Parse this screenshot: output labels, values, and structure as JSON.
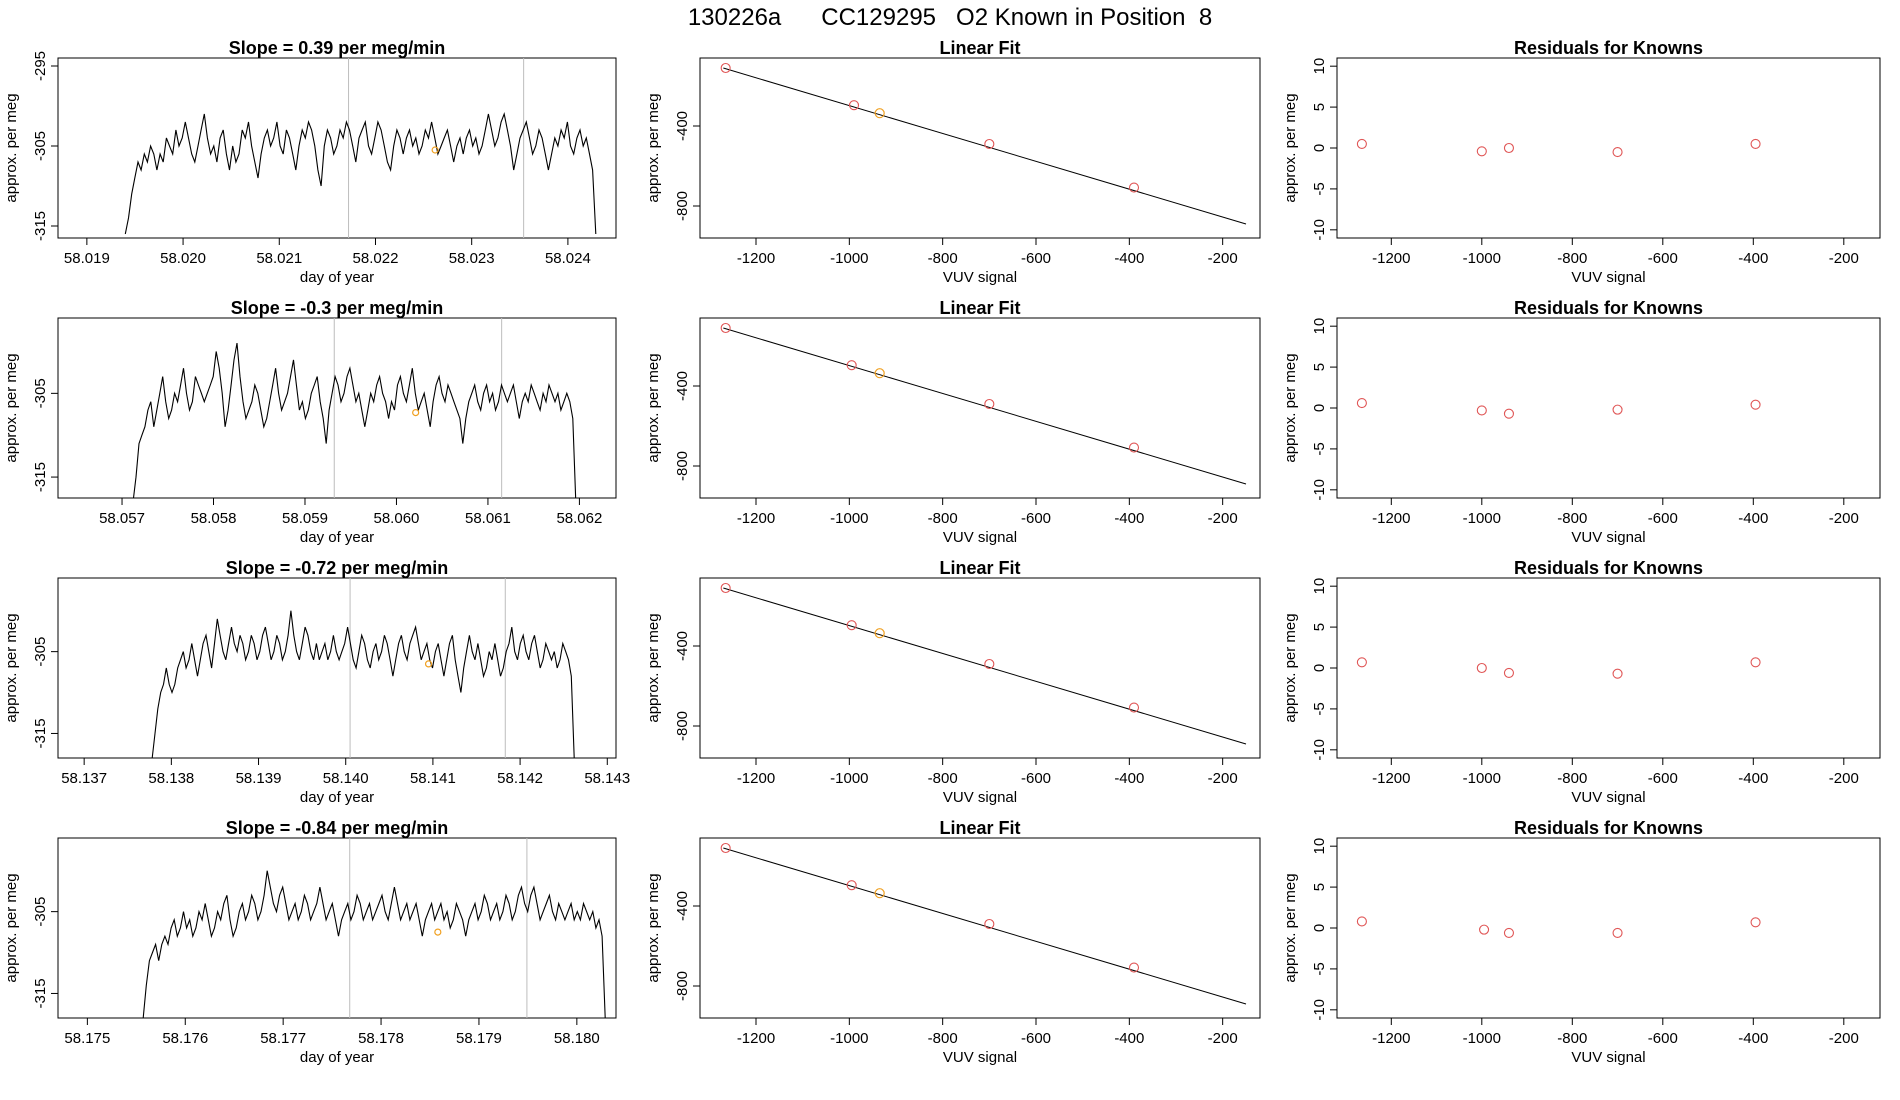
{
  "figure_title": "130226a      CC129295   O2 Known in Position  8",
  "colors": {
    "trace": "#000000",
    "gridline": "#bdbdbd",
    "fit_line": "#000000",
    "known_point": "#e05555",
    "current_point": "#f0a020",
    "frame": "#000000"
  },
  "chart_data": [
    {
      "type": "line",
      "row": 1,
      "title": "Slope =  0.39  per meg/min",
      "xlabel": "day of year",
      "ylabel": "approx. per meg",
      "xlim": [
        58.0187,
        58.0245
      ],
      "ylim": [
        -316.5,
        -294
      ],
      "xticks": [
        "58.019",
        "58.020",
        "58.021",
        "58.022",
        "58.023",
        "58.024"
      ],
      "yticks": [
        -295,
        -305,
        -315
      ],
      "vlines": [
        58.02172,
        58.02354
      ],
      "x_start": 58.0194,
      "x_end": 58.02429,
      "y": [
        -316,
        -314,
        -311,
        -309,
        -307,
        -308,
        -306,
        -307,
        -305,
        -306,
        -308,
        -306,
        -307,
        -304,
        -305,
        -306,
        -303,
        -305,
        -304,
        -302,
        -304,
        -306,
        -307,
        -305,
        -303,
        -301,
        -304,
        -306,
        -305,
        -307,
        -304,
        -303,
        -306,
        -308,
        -305,
        -307,
        -306,
        -303,
        -304,
        -302,
        -305,
        -307,
        -309,
        -306,
        -304,
        -303,
        -305,
        -304,
        -302,
        -305,
        -306,
        -303,
        -304,
        -306,
        -308,
        -305,
        -303,
        -304,
        -302,
        -303,
        -305,
        -308,
        -310,
        -305,
        -303,
        -304,
        -306,
        -305,
        -303,
        -304,
        -302,
        -303,
        -305,
        -307,
        -304,
        -303,
        -302,
        -305,
        -306,
        -304,
        -302,
        -303,
        -305,
        -307,
        -308,
        -305,
        -303,
        -304,
        -306,
        -304,
        -303,
        -305,
        -304,
        -306,
        -305,
        -303,
        -304,
        -302,
        -304,
        -306,
        -305,
        -304,
        -303,
        -305,
        -307,
        -305,
        -304,
        -306,
        -304,
        -303,
        -305,
        -304,
        -306,
        -305,
        -303,
        -301,
        -303,
        -305,
        -304,
        -302,
        -301,
        -303,
        -305,
        -308,
        -306,
        -304,
        -303,
        -302,
        -304,
        -306,
        -305,
        -303,
        -304,
        -306,
        -308,
        -306,
        -304,
        -305,
        -303,
        -304,
        -302,
        -305,
        -306,
        -304,
        -303,
        -305,
        -304,
        -306,
        -308,
        -316
      ],
      "marker": {
        "x": 58.02262,
        "y": -305.5
      }
    },
    {
      "type": "line",
      "row": 1,
      "title": "Linear Fit",
      "xlabel": "VUV signal",
      "ylabel": "approx. per meg",
      "xlim": [
        -1320,
        -120
      ],
      "ylim": [
        -960,
        -60
      ],
      "xticks": [
        -1200,
        -1000,
        -800,
        -600,
        -400,
        -200
      ],
      "yticks": [
        -400,
        -800
      ],
      "fit": [
        [
          -1270,
          -110
        ],
        [
          -150,
          -890
        ]
      ],
      "known": [
        [
          -1265,
          -110
        ],
        [
          -990,
          -296
        ],
        [
          -700,
          -490
        ],
        [
          -390,
          -708
        ]
      ],
      "current": [
        [
          -935,
          -336
        ]
      ]
    },
    {
      "type": "scatter",
      "row": 1,
      "title": "Residuals for Knowns",
      "xlabel": "VUV signal",
      "ylabel": "approx. per meg",
      "xlim": [
        -1320,
        -120
      ],
      "ylim": [
        -11,
        11
      ],
      "xticks": [
        -1200,
        -1000,
        -800,
        -600,
        -400,
        -200
      ],
      "yticks": [
        10,
        5,
        0,
        -5,
        -10
      ],
      "known": [
        [
          -1265,
          0.5
        ],
        [
          -1000,
          -0.4
        ],
        [
          -940,
          0
        ],
        [
          -700,
          -0.5
        ],
        [
          -395,
          0.5
        ]
      ]
    },
    {
      "type": "line",
      "row": 2,
      "title": "Slope =  -0.3  per meg/min",
      "xlabel": "day of year",
      "ylabel": "approx. per meg",
      "xlim": [
        58.0563,
        58.0624
      ],
      "ylim": [
        -317.5,
        -296
      ],
      "xticks": [
        "58.057",
        "58.058",
        "58.059",
        "58.060",
        "58.061",
        "58.062"
      ],
      "yticks": [
        -305,
        -315
      ],
      "vlines": [
        58.05932,
        58.06115
      ],
      "x_start": 58.05712,
      "x_end": 58.06196,
      "y": [
        -318,
        -315,
        -311,
        -310,
        -309,
        -307,
        -306,
        -309,
        -307,
        -305,
        -303,
        -306,
        -308,
        -307,
        -305,
        -306,
        -304,
        -302,
        -305,
        -307,
        -306,
        -303,
        -304,
        -305,
        -306,
        -305,
        -304,
        -303,
        -300,
        -302,
        -305,
        -309,
        -307,
        -304,
        -301,
        -299,
        -303,
        -306,
        -308,
        -307,
        -306,
        -304,
        -305,
        -307,
        -309,
        -308,
        -306,
        -304,
        -302,
        -305,
        -307,
        -306,
        -305,
        -303,
        -301,
        -304,
        -307,
        -306,
        -308,
        -307,
        -305,
        -304,
        -303,
        -306,
        -308,
        -311,
        -307,
        -305,
        -303,
        -304,
        -306,
        -305,
        -303,
        -302,
        -304,
        -306,
        -305,
        -307,
        -309,
        -307,
        -305,
        -306,
        -304,
        -303,
        -305,
        -306,
        -308,
        -306,
        -307,
        -304,
        -303,
        -305,
        -306,
        -304,
        -302,
        -305,
        -307,
        -306,
        -305,
        -307,
        -309,
        -306,
        -304,
        -303,
        -305,
        -306,
        -304,
        -305,
        -306,
        -307,
        -308,
        -311,
        -308,
        -306,
        -305,
        -304,
        -306,
        -307,
        -305,
        -304,
        -306,
        -305,
        -307,
        -306,
        -304,
        -305,
        -306,
        -305,
        -304,
        -306,
        -308,
        -306,
        -305,
        -306,
        -304,
        -305,
        -306,
        -307,
        -305,
        -306,
        -304,
        -305,
        -306,
        -305,
        -307,
        -306,
        -305,
        -306,
        -308,
        -318
      ],
      "marker": {
        "x": 58.06021,
        "y": -307.3
      }
    },
    {
      "type": "line",
      "row": 2,
      "title": "Linear Fit",
      "xlabel": "VUV signal",
      "ylabel": "approx. per meg",
      "xlim": [
        -1320,
        -120
      ],
      "ylim": [
        -960,
        -60
      ],
      "xticks": [
        -1200,
        -1000,
        -800,
        -600,
        -400,
        -200
      ],
      "yticks": [
        -400,
        -800
      ],
      "fit": [
        [
          -1270,
          -110
        ],
        [
          -150,
          -890
        ]
      ],
      "known": [
        [
          -1265,
          -110
        ],
        [
          -995,
          -296
        ],
        [
          -700,
          -490
        ],
        [
          -390,
          -708
        ]
      ],
      "current": [
        [
          -935,
          -336
        ]
      ]
    },
    {
      "type": "scatter",
      "row": 2,
      "title": "Residuals for Knowns",
      "xlabel": "VUV signal",
      "ylabel": "approx. per meg",
      "xlim": [
        -1320,
        -120
      ],
      "ylim": [
        -11,
        11
      ],
      "xticks": [
        -1200,
        -1000,
        -800,
        -600,
        -400,
        -200
      ],
      "yticks": [
        10,
        5,
        0,
        -5,
        -10
      ],
      "known": [
        [
          -1265,
          0.6
        ],
        [
          -1000,
          -0.3
        ],
        [
          -940,
          -0.7
        ],
        [
          -700,
          -0.2
        ],
        [
          -395,
          0.4
        ]
      ]
    },
    {
      "type": "line",
      "row": 3,
      "title": "Slope =  -0.72  per meg/min",
      "xlabel": "day of year",
      "ylabel": "approx. per meg",
      "xlim": [
        58.1367,
        58.1431
      ],
      "ylim": [
        -318,
        -296
      ],
      "xticks": [
        "58.137",
        "58.138",
        "58.139",
        "58.140",
        "58.141",
        "58.142",
        "58.143"
      ],
      "yticks": [
        -305,
        -315
      ],
      "vlines": [
        58.14005,
        58.14183
      ],
      "x_start": 58.13778,
      "x_end": 58.14262,
      "y": [
        -318,
        -315,
        -312,
        -310,
        -309,
        -307,
        -309,
        -310,
        -309,
        -307,
        -306,
        -305,
        -307,
        -306,
        -304,
        -306,
        -308,
        -306,
        -304,
        -303,
        -305,
        -307,
        -304,
        -301,
        -303,
        -305,
        -306,
        -304,
        -302,
        -304,
        -305,
        -303,
        -304,
        -306,
        -305,
        -303,
        -304,
        -306,
        -305,
        -303,
        -302,
        -304,
        -306,
        -305,
        -303,
        -304,
        -306,
        -305,
        -303,
        -300,
        -303,
        -305,
        -306,
        -304,
        -302,
        -303,
        -305,
        -306,
        -304,
        -306,
        -305,
        -304,
        -306,
        -305,
        -303,
        -305,
        -306,
        -305,
        -304,
        -302,
        -304,
        -306,
        -307,
        -305,
        -303,
        -304,
        -306,
        -307,
        -305,
        -304,
        -306,
        -305,
        -303,
        -304,
        -306,
        -308,
        -306,
        -304,
        -303,
        -305,
        -306,
        -304,
        -303,
        -302,
        -304,
        -306,
        -305,
        -304,
        -306,
        -307,
        -305,
        -304,
        -306,
        -308,
        -306,
        -304,
        -303,
        -306,
        -308,
        -310,
        -307,
        -305,
        -303,
        -305,
        -306,
        -304,
        -306,
        -308,
        -307,
        -305,
        -306,
        -304,
        -306,
        -308,
        -307,
        -305,
        -304,
        -302,
        -305,
        -306,
        -304,
        -303,
        -305,
        -306,
        -304,
        -303,
        -305,
        -307,
        -306,
        -304,
        -305,
        -306,
        -305,
        -307,
        -306,
        -304,
        -305,
        -306,
        -308,
        -318
      ],
      "marker": {
        "x": 58.14095,
        "y": -306.5
      }
    },
    {
      "type": "line",
      "row": 3,
      "title": "Linear Fit",
      "xlabel": "VUV signal",
      "ylabel": "approx. per meg",
      "xlim": [
        -1320,
        -120
      ],
      "ylim": [
        -960,
        -60
      ],
      "xticks": [
        -1200,
        -1000,
        -800,
        -600,
        -400,
        -200
      ],
      "yticks": [
        -400,
        -800
      ],
      "fit": [
        [
          -1270,
          -110
        ],
        [
          -150,
          -890
        ]
      ],
      "known": [
        [
          -1265,
          -110
        ],
        [
          -995,
          -296
        ],
        [
          -700,
          -490
        ],
        [
          -390,
          -708
        ]
      ],
      "current": [
        [
          -935,
          -336
        ]
      ]
    },
    {
      "type": "scatter",
      "row": 3,
      "title": "Residuals for Knowns",
      "xlabel": "VUV signal",
      "ylabel": "approx. per meg",
      "xlim": [
        -1320,
        -120
      ],
      "ylim": [
        -11,
        11
      ],
      "xticks": [
        -1200,
        -1000,
        -800,
        -600,
        -400,
        -200
      ],
      "yticks": [
        10,
        5,
        0,
        -5,
        -10
      ],
      "known": [
        [
          -1265,
          0.7
        ],
        [
          -1000,
          0
        ],
        [
          -940,
          -0.6
        ],
        [
          -700,
          -0.7
        ],
        [
          -395,
          0.7
        ]
      ]
    },
    {
      "type": "line",
      "row": 4,
      "title": "Slope =  -0.84  per meg/min",
      "xlabel": "day of year",
      "ylabel": "approx. per meg",
      "xlim": [
        58.1747,
        58.1804
      ],
      "ylim": [
        -318,
        -296
      ],
      "xticks": [
        "58.175",
        "58.176",
        "58.177",
        "58.178",
        "58.179",
        "58.180"
      ],
      "yticks": [
        -305,
        -315
      ],
      "vlines": [
        58.17768,
        58.17949
      ],
      "x_start": 58.17557,
      "x_end": 58.18029,
      "y": [
        -318,
        -314,
        -311,
        -310,
        -309,
        -311,
        -309,
        -308,
        -309,
        -307,
        -306,
        -308,
        -307,
        -305,
        -307,
        -306,
        -308,
        -307,
        -305,
        -306,
        -304,
        -306,
        -308,
        -307,
        -305,
        -306,
        -304,
        -303,
        -306,
        -308,
        -307,
        -305,
        -304,
        -306,
        -305,
        -303,
        -304,
        -306,
        -305,
        -303,
        -300,
        -302,
        -304,
        -305,
        -303,
        -302,
        -304,
        -306,
        -305,
        -304,
        -306,
        -305,
        -303,
        -304,
        -306,
        -305,
        -304,
        -302,
        -304,
        -306,
        -305,
        -304,
        -306,
        -308,
        -306,
        -305,
        -304,
        -306,
        -305,
        -303,
        -304,
        -306,
        -305,
        -304,
        -306,
        -305,
        -304,
        -303,
        -305,
        -306,
        -304,
        -302,
        -304,
        -306,
        -305,
        -304,
        -306,
        -305,
        -304,
        -306,
        -308,
        -306,
        -305,
        -304,
        -306,
        -305,
        -304,
        -306,
        -305,
        -307,
        -306,
        -304,
        -305,
        -306,
        -308,
        -306,
        -305,
        -304,
        -306,
        -305,
        -303,
        -304,
        -306,
        -305,
        -304,
        -306,
        -305,
        -303,
        -304,
        -306,
        -305,
        -303,
        -302,
        -304,
        -305,
        -303,
        -302,
        -304,
        -306,
        -305,
        -304,
        -303,
        -305,
        -306,
        -304,
        -305,
        -306,
        -305,
        -304,
        -306,
        -305,
        -306,
        -304,
        -305,
        -306,
        -305,
        -307,
        -306,
        -308,
        -318
      ],
      "marker": {
        "x": 58.17858,
        "y": -307.5
      }
    },
    {
      "type": "line",
      "row": 4,
      "title": "Linear Fit",
      "xlabel": "VUV signal",
      "ylabel": "approx. per meg",
      "xlim": [
        -1320,
        -120
      ],
      "ylim": [
        -960,
        -60
      ],
      "xticks": [
        -1200,
        -1000,
        -800,
        -600,
        -400,
        -200
      ],
      "yticks": [
        -400,
        -800
      ],
      "fit": [
        [
          -1270,
          -110
        ],
        [
          -150,
          -890
        ]
      ],
      "known": [
        [
          -1265,
          -110
        ],
        [
          -995,
          -296
        ],
        [
          -700,
          -490
        ],
        [
          -390,
          -708
        ]
      ],
      "current": [
        [
          -935,
          -336
        ]
      ]
    },
    {
      "type": "scatter",
      "row": 4,
      "title": "Residuals for Knowns",
      "xlabel": "VUV signal",
      "ylabel": "approx. per meg",
      "xlim": [
        -1320,
        -120
      ],
      "ylim": [
        -11,
        11
      ],
      "xticks": [
        -1200,
        -1000,
        -800,
        -600,
        -400,
        -200
      ],
      "yticks": [
        10,
        5,
        0,
        -5,
        -10
      ],
      "known": [
        [
          -1265,
          0.8
        ],
        [
          -995,
          -0.2
        ],
        [
          -940,
          -0.6
        ],
        [
          -700,
          -0.6
        ],
        [
          -395,
          0.7
        ]
      ]
    }
  ]
}
